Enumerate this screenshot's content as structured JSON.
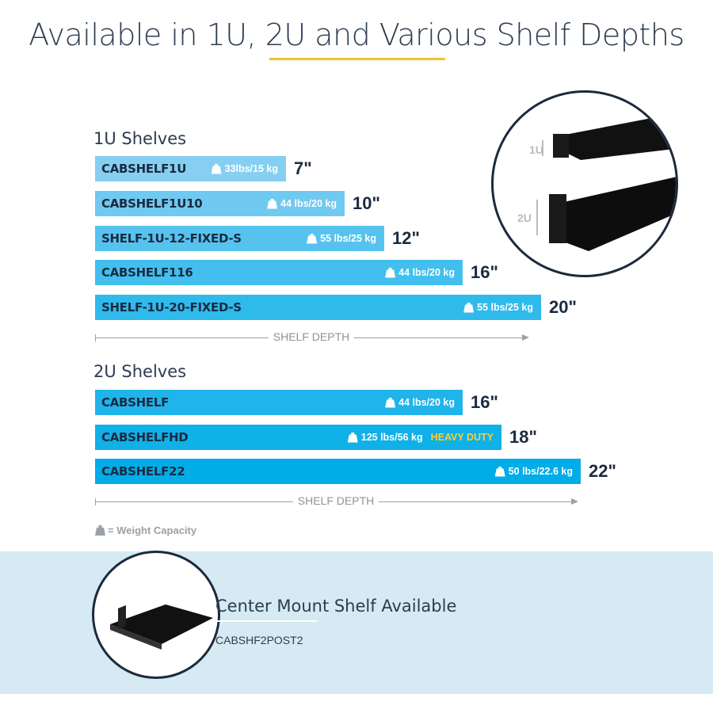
{
  "title": "Available in 1U, 2U and Various Shelf Depths",
  "sections": [
    {
      "label": "1U Shelves",
      "axis_label": "SHELF DEPTH",
      "shelves": [
        {
          "sku": "CABSHELF1U",
          "capacity": "33lbs/15 kg",
          "depth_in": 7,
          "depth": "7\"",
          "color": "#86cff1"
        },
        {
          "sku": "CABSHELF1U10",
          "capacity": "44 lbs/20 kg",
          "depth_in": 10,
          "depth": "10\"",
          "color": "#70c9f0"
        },
        {
          "sku": "SHELF-1U-12-FIXED-S",
          "capacity": "55 lbs/25 kg",
          "depth_in": 12,
          "depth": "12\"",
          "color": "#56c3ef"
        },
        {
          "sku": "CABSHELF116",
          "capacity": "44 lbs/20 kg",
          "depth_in": 16,
          "depth": "16\"",
          "color": "#42bfee"
        },
        {
          "sku": "SHELF-1U-20-FIXED-S",
          "capacity": "55 lbs/25 kg",
          "depth_in": 20,
          "depth": "20\"",
          "color": "#2fbaec"
        }
      ]
    },
    {
      "label": "2U Shelves",
      "axis_label": "SHELF DEPTH",
      "shelves": [
        {
          "sku": "CABSHELF",
          "capacity": "44 lbs/20 kg",
          "depth_in": 16,
          "depth": "16\"",
          "color": "#1fb4ea"
        },
        {
          "sku": "CABSHELFHD",
          "capacity": "125 lbs/56 kg",
          "badge": "HEAVY DUTY",
          "depth_in": 18,
          "depth": "18\"",
          "color": "#10b0e8"
        },
        {
          "sku": "CABSHELF22",
          "capacity": "50 lbs/22.6 kg",
          "depth_in": 22,
          "depth": "22\"",
          "color": "#02ace6"
        }
      ]
    }
  ],
  "legend": "= Weight Capacity",
  "rack_image": {
    "label_1u": "1U",
    "label_2u": "2U"
  },
  "center_mount": {
    "title": "Center Mount Shelf Available",
    "sku": "CABSHF2POST2"
  },
  "colors": {
    "accent_yellow": "#f2c330",
    "text_navy": "#1a2a40",
    "band": "#d6eaf3"
  }
}
